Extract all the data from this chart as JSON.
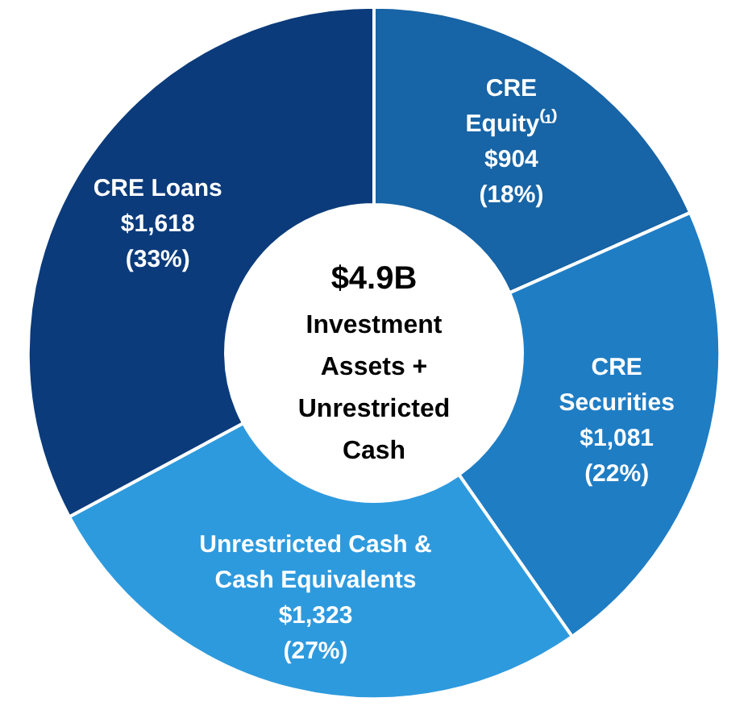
{
  "chart_data": {
    "type": "donut",
    "title": "$4.9B",
    "subtitle": "Investment\nAssets +\nUnrestricted\nCash",
    "categories": [
      "CRE\nEquity⁽¹⁾",
      "CRE\nSecurities",
      "Unrestricted Cash &\nCash Equivalents",
      "CRE Loans"
    ],
    "values": [
      904,
      1081,
      1323,
      1618
    ],
    "value_labels": [
      "$904\n(18%)",
      "$1,081\n(22%)",
      "$1,323\n(27%)",
      "$1,618\n(33%)"
    ],
    "colors": [
      "#1764a6",
      "#1f7dc4",
      "#2e9ade",
      "#0b3b7b"
    ],
    "legend": false
  }
}
